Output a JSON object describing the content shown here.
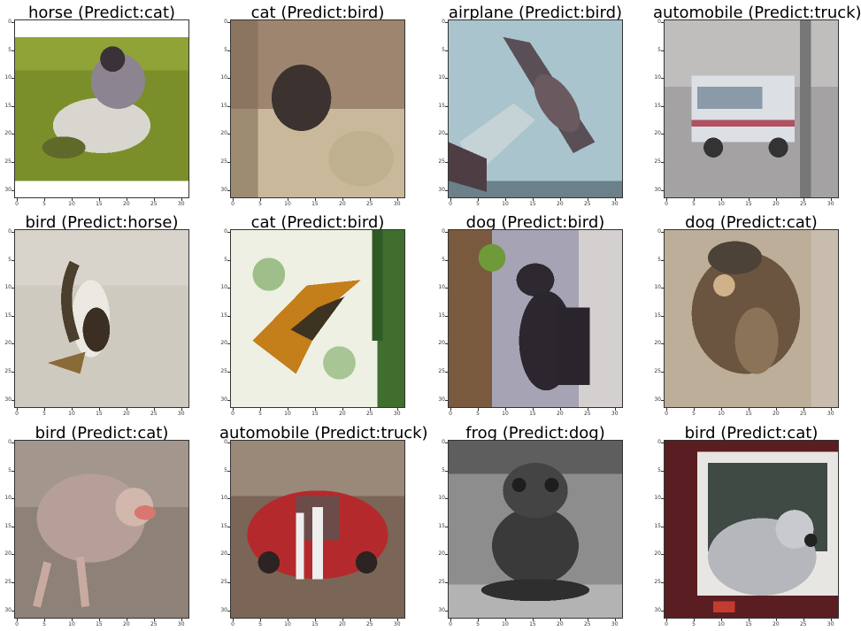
{
  "ticks": {
    "x": [
      "0",
      "5",
      "10",
      "15",
      "20",
      "25",
      "30"
    ],
    "y": [
      "0",
      "5",
      "10",
      "15",
      "20",
      "25",
      "30"
    ]
  },
  "panels": [
    {
      "title": "horse (Predict:cat)",
      "scene": "horse-grass"
    },
    {
      "title": "cat (Predict:bird)",
      "scene": "cat-dark"
    },
    {
      "title": "airplane (Predict:bird)",
      "scene": "airplane-sky"
    },
    {
      "title": "automobile (Predict:truck)",
      "scene": "van-street"
    },
    {
      "title": "bird (Predict:horse)",
      "scene": "bird-white"
    },
    {
      "title": "cat (Predict:bird)",
      "scene": "cat-orange"
    },
    {
      "title": "dog (Predict:bird)",
      "scene": "dog-black"
    },
    {
      "title": "dog (Predict:cat)",
      "scene": "dog-brown"
    },
    {
      "title": "bird (Predict:cat)",
      "scene": "bird-pink"
    },
    {
      "title": "automobile (Predict:truck)",
      "scene": "car-red"
    },
    {
      "title": "frog (Predict:dog)",
      "scene": "frog-gray"
    },
    {
      "title": "bird (Predict:cat)",
      "scene": "parrot-gray"
    }
  ]
}
